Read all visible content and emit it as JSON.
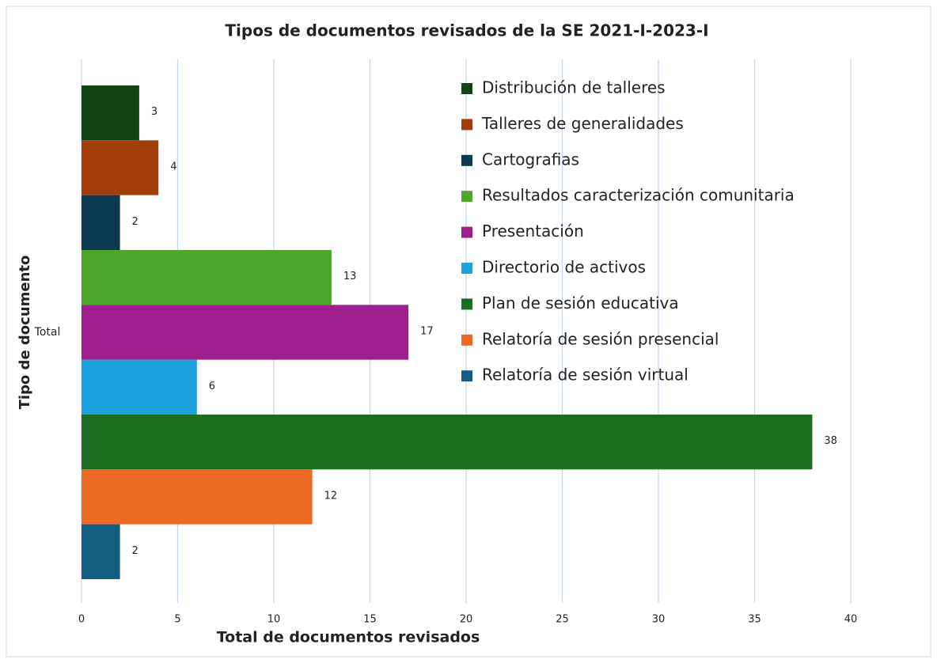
{
  "chart_data": {
    "type": "hbar",
    "title": "Tipos de documentos revisados de la SE 2021-I-2023-I",
    "x_label": "Total de documentos revisados",
    "y_label": "Tipo de documento",
    "categories": [
      "Total"
    ],
    "series": [
      {
        "name": "Distribución de talleres",
        "color": "#124414",
        "values": [
          3
        ]
      },
      {
        "name": "Talleres  de generalidades",
        "color": "#a33d0c",
        "values": [
          4
        ]
      },
      {
        "name": "Cartografias",
        "color": "#0c3a50",
        "values": [
          2
        ]
      },
      {
        "name": "Resultados caracterización comunitaria",
        "color": "#4fa62e",
        "values": [
          13
        ]
      },
      {
        "name": "Presentación",
        "color": "#a01f8e",
        "values": [
          17
        ]
      },
      {
        "name": "Directorio de activos",
        "color": "#1ca3de",
        "values": [
          6
        ]
      },
      {
        "name": "Plan de sesión educativa",
        "color": "#1a6c20",
        "values": [
          38
        ]
      },
      {
        "name": "Relatoría de sesión presencial",
        "color": "#ec6a24",
        "values": [
          12
        ]
      },
      {
        "name": "Relatoría de sesión virtual",
        "color": "#135c82",
        "values": [
          2
        ]
      }
    ],
    "xlim": [
      0,
      40
    ],
    "xticks": [
      0,
      5,
      10,
      15,
      20,
      25,
      30,
      35,
      40
    ],
    "grid": true
  }
}
